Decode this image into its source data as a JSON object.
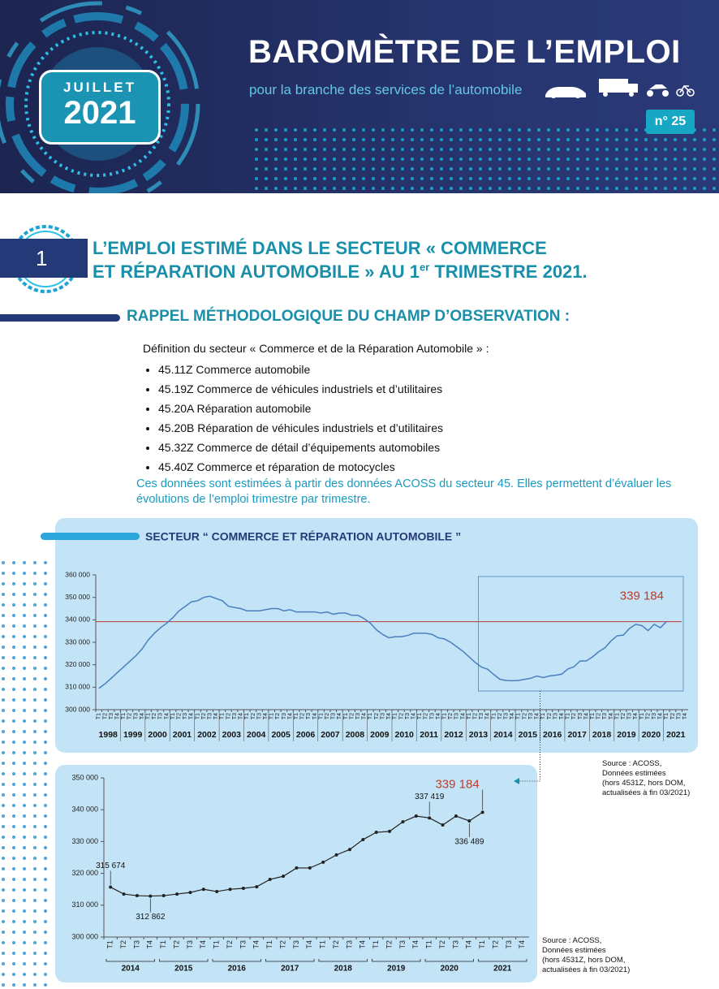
{
  "header": {
    "month": "JUILLET",
    "year": "2021",
    "title": "BAROMÈTRE DE L’EMPLOI",
    "subtitle": "pour la branche des services de l’automobile",
    "issue": "n° 25"
  },
  "section": {
    "number": "1",
    "title_line1": "L’EMPLOI ESTIMÉ DANS LE SECTEUR « COMMERCE",
    "title_line2": "ET RÉPARATION AUTOMOBILE » AU 1",
    "title_sup": "er",
    "title_end": " TRIMESTRE 2021."
  },
  "method": {
    "heading": "RAPPEL MÉTHODOLOGIQUE DU CHAMP D’OBSERVATION :",
    "intro": "Définition du secteur « Commerce et de la Réparation Automobile » :",
    "items": [
      "45.11Z Commerce automobile",
      "45.19Z Commerce de véhicules industriels et d’utilitaires",
      "45.20A Réparation automobile",
      "45.20B Réparation de véhicules industriels et d’utilitaires",
      "45.32Z Commerce de détail d’équipements automobiles",
      "45.40Z Commerce et réparation de motocycles"
    ],
    "note": "Ces données sont estimées à partir des données ACOSS du secteur 45. Elles permettent d’évaluer les évolutions de l’emploi trimestre par trimestre."
  },
  "chart_data": [
    {
      "type": "line",
      "title": "SECTEUR “ COMMERCE ET RÉPARATION AUTOMOBILE ”",
      "color": "#4a7fc1",
      "categories": [
        "T1",
        "T2",
        "T3",
        "T4",
        "T1",
        "T2",
        "T3",
        "T4",
        "T1",
        "T2",
        "T3",
        "T4",
        "T1",
        "T2",
        "T3",
        "T4",
        "T1",
        "T2",
        "T3",
        "T4",
        "T1",
        "T2",
        "T3",
        "T4",
        "T1",
        "T2",
        "T3",
        "T4",
        "T1",
        "T2",
        "T3",
        "T4",
        "T1",
        "T2",
        "T3",
        "T4",
        "T1",
        "T2",
        "T3",
        "T4",
        "T1",
        "T2",
        "T3",
        "T4",
        "T1",
        "T2",
        "T3",
        "T4",
        "T1",
        "T2",
        "T3",
        "T4",
        "T1",
        "T2",
        "T3",
        "T4",
        "T1",
        "T2",
        "T3",
        "T4",
        "T1",
        "T2",
        "T3",
        "T4",
        "T1",
        "T2",
        "T3",
        "T4",
        "T1",
        "T2",
        "T3",
        "T4",
        "T1",
        "T2",
        "T3",
        "T4",
        "T1",
        "T2",
        "T3",
        "T4",
        "T1",
        "T2",
        "T3",
        "T4",
        "T1",
        "T2",
        "T3",
        "T4",
        "T1",
        "T2",
        "T3",
        "T4",
        "T1",
        "T2",
        "T3",
        "T4"
      ],
      "years": [
        "1998",
        "1999",
        "2000",
        "2001",
        "2002",
        "2003",
        "2004",
        "2005",
        "2006",
        "2007",
        "2008",
        "2009",
        "2010",
        "2011",
        "2012",
        "2013",
        "2014",
        "2015",
        "2016",
        "2017",
        "2018",
        "2019",
        "2020",
        "2021"
      ],
      "values": [
        309500,
        311500,
        314000,
        316500,
        319000,
        321500,
        324000,
        327000,
        331000,
        334000,
        336500,
        338500,
        341000,
        344000,
        346000,
        348000,
        348500,
        350000,
        350500,
        349500,
        348500,
        346000,
        345500,
        345000,
        344000,
        344000,
        344000,
        344500,
        345000,
        345000,
        344000,
        344500,
        343500,
        343500,
        343500,
        343500,
        343000,
        343500,
        342500,
        343000,
        343000,
        342000,
        342000,
        340500,
        338500,
        335500,
        333500,
        332000,
        332500,
        332500,
        333000,
        334000,
        334000,
        334000,
        333500,
        332000,
        331500,
        330000,
        328000,
        326000,
        323500,
        321000,
        319000,
        318000,
        315674,
        313500,
        313000,
        312862,
        313000,
        313500,
        314000,
        315000,
        314300,
        315000,
        315300,
        315800,
        318100,
        319100,
        321700,
        321700,
        323500,
        325800,
        327500,
        330600,
        332900,
        333200,
        336200,
        338000,
        337419,
        335200,
        338000,
        336489,
        339184,
        null,
        null,
        null
      ],
      "reference_line": {
        "value": 339184,
        "label": "339 184",
        "color": "#c0392b"
      },
      "ylim": [
        300000,
        360000
      ],
      "yticks": [
        {
          "value": 300000,
          "label": "300 000"
        },
        {
          "value": 310000,
          "label": "310 000"
        },
        {
          "value": 320000,
          "label": "320 000"
        },
        {
          "value": 330000,
          "label": "330 000"
        },
        {
          "value": 340000,
          "label": "340 000"
        },
        {
          "value": 350000,
          "label": "350 000"
        },
        {
          "value": 360000,
          "label": "360 000"
        }
      ],
      "source": [
        "Source : ACOSS,",
        "Données estimées",
        "(hors 4531Z, hors DOM,",
        "actualisées à fin 03/2021)"
      ]
    },
    {
      "type": "line",
      "color": "#222222",
      "markers": true,
      "categories": [
        "T1",
        "T2",
        "T3",
        "T4",
        "T1",
        "T2",
        "T3",
        "T4",
        "T1",
        "T2",
        "T3",
        "T4",
        "T1",
        "T2",
        "T3",
        "T4",
        "T1",
        "T2",
        "T3",
        "T4",
        "T1",
        "T2",
        "T3",
        "T4",
        "T1",
        "T2",
        "T3",
        "T4",
        "T1",
        "T2",
        "T3",
        "T4"
      ],
      "years": [
        "2014",
        "2015",
        "2016",
        "2017",
        "2018",
        "2019",
        "2020",
        "2021"
      ],
      "values": [
        315674,
        313500,
        313000,
        312862,
        313000,
        313500,
        314000,
        315000,
        314300,
        315000,
        315300,
        315800,
        318100,
        319100,
        321700,
        321700,
        323500,
        325800,
        327500,
        330600,
        332900,
        333200,
        336200,
        338000,
        337419,
        335200,
        338000,
        336489,
        339184,
        null,
        null,
        null
      ],
      "value_labels": [
        "315 674",
        null,
        null,
        "312 862",
        null,
        null,
        null,
        null,
        null,
        null,
        null,
        null,
        null,
        null,
        null,
        null,
        null,
        null,
        null,
        null,
        null,
        null,
        null,
        null,
        "337 419",
        null,
        null,
        "336 489",
        "339 184",
        null,
        null,
        null
      ],
      "ylim": [
        300000,
        350000
      ],
      "yticks": [
        {
          "value": 300000,
          "label": "300 000"
        },
        {
          "value": 310000,
          "label": "310 000"
        },
        {
          "value": 320000,
          "label": "320 000"
        },
        {
          "value": 330000,
          "label": "330 000"
        },
        {
          "value": 340000,
          "label": "340 000"
        },
        {
          "value": 350000,
          "label": "350 000"
        }
      ],
      "source": [
        "Source : ACOSS,",
        "Données estimées",
        "(hors 4531Z, hors DOM,",
        "actualisées à fin 03/2021)"
      ]
    }
  ]
}
